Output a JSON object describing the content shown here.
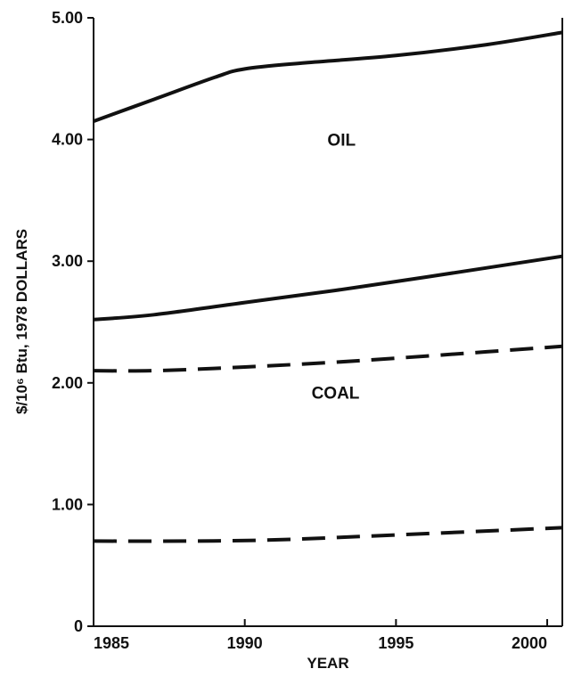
{
  "chart_data": {
    "type": "line",
    "title": "",
    "xlabel": "YEAR",
    "ylabel": "$/10⁶ Btu, 1978 DOLLARS",
    "xlim": [
      1985,
      2000.5
    ],
    "ylim": [
      0,
      5.0
    ],
    "xticks": [
      {
        "value": 1985,
        "label": "1985"
      },
      {
        "value": 1990,
        "label": "1990"
      },
      {
        "value": 1995,
        "label": "1995"
      },
      {
        "value": 2000,
        "label": "2000"
      }
    ],
    "yticks": [
      {
        "value": 0,
        "label": "0"
      },
      {
        "value": 1.0,
        "label": "1.00"
      },
      {
        "value": 2.0,
        "label": "2.00"
      },
      {
        "value": 3.0,
        "label": "3.00"
      },
      {
        "value": 4.0,
        "label": "4.00"
      },
      {
        "value": 5.0,
        "label": "5.00"
      }
    ],
    "grid": false,
    "legend": "none",
    "annotations": [
      {
        "text": "OIL",
        "x": 1993.2,
        "y": 3.95
      },
      {
        "text": "COAL",
        "x": 1993.0,
        "y": 1.87
      }
    ],
    "series": [
      {
        "style": "solid",
        "x": [
          1985,
          1987,
          1989,
          1990,
          1992,
          1995,
          1998,
          2000.5
        ],
        "y": [
          4.15,
          4.33,
          4.51,
          4.58,
          4.63,
          4.69,
          4.78,
          4.88
        ]
      },
      {
        "style": "solid",
        "x": [
          1985,
          1987,
          1990,
          1993,
          1996,
          2000.5
        ],
        "y": [
          2.52,
          2.56,
          2.66,
          2.76,
          2.87,
          3.04
        ]
      },
      {
        "style": "dashed",
        "x": [
          1985,
          1987,
          1990,
          1993,
          1996,
          2000.5
        ],
        "y": [
          2.1,
          2.1,
          2.13,
          2.17,
          2.22,
          2.3
        ]
      },
      {
        "style": "dashed",
        "x": [
          1985,
          1988,
          1991,
          1995,
          2000.5
        ],
        "y": [
          0.7,
          0.7,
          0.71,
          0.75,
          0.81
        ]
      }
    ]
  }
}
